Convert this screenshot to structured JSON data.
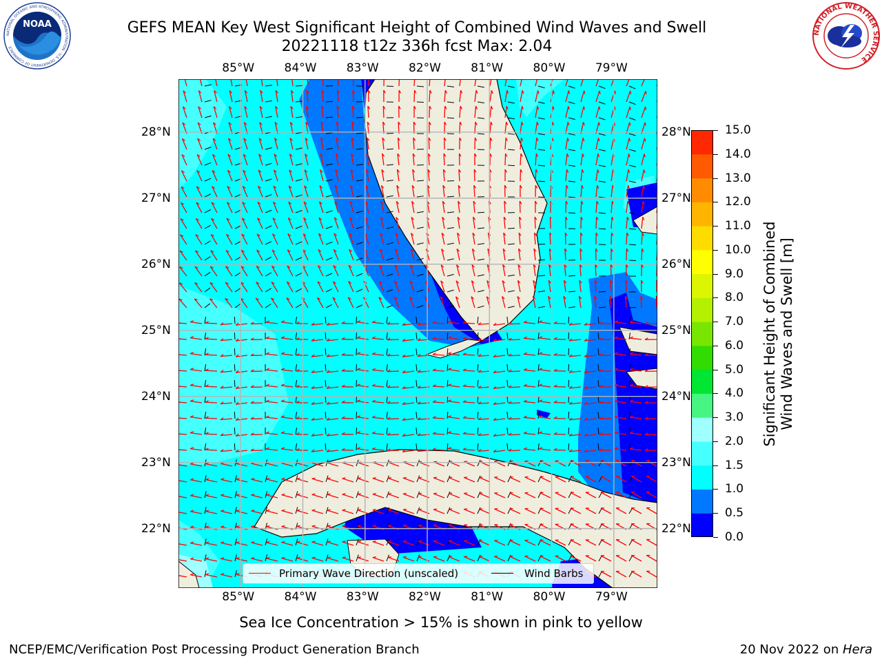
{
  "title": {
    "line1": "GEFS MEAN Key West Significant Height of Combined Wind Waves and Swell",
    "line2": "20221118 t12z 336h fcst   Max: 2.04"
  },
  "logos": {
    "noaa_text": "NOAA",
    "noaa_ring_text": "NATIONAL OCEANIC AND ATMOSPHERIC ADMINISTRATION · U.S. DEPARTMENT OF COMMERCE",
    "nws_ring_text": "NATIONAL WEATHER SERVICE"
  },
  "map": {
    "lon_labels": [
      "85°W",
      "84°W",
      "83°W",
      "82°W",
      "81°W",
      "80°W",
      "79°W"
    ],
    "lat_labels": [
      "28°N",
      "27°N",
      "26°N",
      "25°N",
      "24°N",
      "23°N",
      "22°N"
    ],
    "lon_range": [
      -86.0,
      -78.3
    ],
    "lat_range": [
      21.1,
      28.8
    ]
  },
  "colorbar": {
    "label_line1": "Significant Height of Combined",
    "label_line2": "Wind Waves and Swell [m]",
    "ticks": [
      "15.0",
      "14.0",
      "13.0",
      "12.0",
      "11.0",
      "10.0",
      "9.0",
      "8.0",
      "7.0",
      "6.0",
      "5.0",
      "4.0",
      "3.0",
      "2.0",
      "1.5",
      "1.0",
      "0.5",
      "0.0"
    ],
    "colors": [
      "#0000ff",
      "#0078ff",
      "#00ffff",
      "#46ffff",
      "#a0ffff",
      "#46f582",
      "#00e632",
      "#32dc00",
      "#78e600",
      "#b4f000",
      "#dcf500",
      "#ffff00",
      "#ffdc00",
      "#ffb400",
      "#ff8c00",
      "#ff5a00",
      "#ff2800",
      "#ff0000"
    ]
  },
  "legend": {
    "primary": "Primary Wave Direction (unscaled)",
    "barbs": "Wind Barbs",
    "primary_color": "#ff0000",
    "barbs_color": "#000000"
  },
  "note": "Sea Ice Concentration > 15% is shown in pink to yellow",
  "footer": {
    "left": "NCEP/EMC/Verification Post Processing Product Generation Branch",
    "right_date": "20 Nov 2022 on ",
    "right_host": "Hera"
  }
}
